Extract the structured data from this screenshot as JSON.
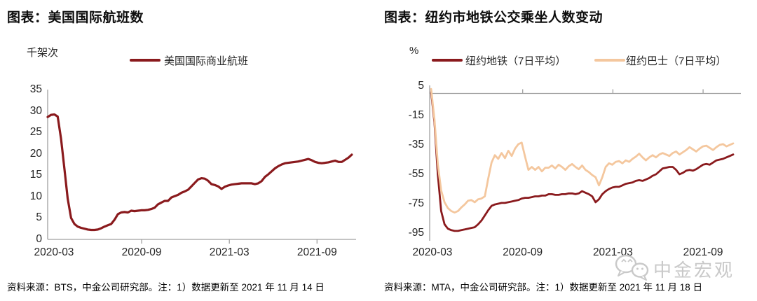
{
  "colors": {
    "line_dark": "#8A1A1D",
    "line_light": "#F4C79E",
    "axis": "#A0A0A0",
    "watermark": "#C9C9C9"
  },
  "watermark": {
    "text": "中金宏观",
    "icon": "wechat-chat-bubbles-icon"
  },
  "charts": [
    {
      "title": "图表：美国国际航班数",
      "unit": "千架次",
      "legend": [
        {
          "label": "美国国际商业航班",
          "color": "#8A1A1D"
        }
      ],
      "source_note": "资料来源：BTS，中金公司研究部。注：1）数据更新至 2021 年 11 月 14 日",
      "chart_data": {
        "type": "line",
        "ylabel_unit": "千架次",
        "ylim": [
          0,
          35
        ],
        "y_ticks": [
          35,
          30,
          25,
          20,
          15,
          10,
          5,
          0
        ],
        "x_tick_labels": [
          "2020-03",
          "2020-09",
          "2021-03",
          "2021-09"
        ],
        "label_months": [
          0,
          6,
          12,
          18
        ],
        "tick_months": [
          6,
          12,
          18
        ],
        "x_start_month": -0.43,
        "x_end_month": 20.38,
        "grid": false,
        "legend_position": "top",
        "series": [
          {
            "name": "美国国际商业航班",
            "color": "#8A1A1D",
            "values": [
              28.6,
              29.1,
              29.2,
              28.7,
              23.5,
              16.5,
              9.5,
              5.0,
              3.6,
              3.0,
              2.7,
              2.5,
              2.3,
              2.2,
              2.2,
              2.3,
              2.6,
              3.0,
              3.3,
              3.6,
              4.6,
              5.9,
              6.3,
              6.4,
              6.3,
              6.7,
              6.6,
              6.7,
              6.8,
              6.8,
              6.9,
              7.1,
              7.4,
              8.2,
              8.6,
              9.0,
              9.0,
              9.8,
              10.1,
              10.4,
              10.9,
              11.2,
              11.6,
              12.4,
              13.2,
              14.0,
              14.3,
              14.2,
              13.7,
              12.9,
              12.7,
              12.4,
              11.8,
              12.3,
              12.6,
              12.8,
              12.9,
              13.0,
              13.1,
              13.1,
              13.1,
              13.1,
              12.9,
              13.1,
              13.6,
              14.6,
              15.2,
              15.9,
              16.6,
              17.1,
              17.5,
              17.8,
              17.9,
              18.0,
              18.1,
              18.2,
              18.4,
              18.6,
              18.8,
              18.5,
              18.1,
              17.9,
              17.8,
              17.9,
              18.0,
              18.2,
              18.4,
              18.1,
              18.1,
              18.6,
              19.1,
              19.8
            ]
          }
        ]
      }
    },
    {
      "title": "图表：纽约市地铁公交乘坐人数变动",
      "unit": "%",
      "legend": [
        {
          "label": "纽约地铁（7日平均）",
          "color": "#8A1A1D"
        },
        {
          "label": "纽约巴士（7日平均）",
          "color": "#F4C79E"
        }
      ],
      "source_note": "资料来源：MTA，中金公司研究部。注：1）数据更新至 2021 年 11 月 18 日",
      "chart_data": {
        "type": "line",
        "ylabel_unit": "%",
        "ylim": [
          -95,
          5
        ],
        "y_ticks": [
          5,
          -15,
          -35,
          -55,
          -75,
          -95
        ],
        "x_tick_labels": [
          "2020-03",
          "2020-09",
          "2021-03",
          "2021-09"
        ],
        "label_months": [
          0,
          6,
          12,
          18
        ],
        "tick_months": [
          6,
          12,
          18
        ],
        "x_start_month": -0.09,
        "x_end_month": 20.0,
        "grid": false,
        "legend_position": "top",
        "series": [
          {
            "name": "纽约地铁（7日平均）",
            "color": "#8A1A1D",
            "values": [
              1,
              -20,
              -55,
              -80,
              -89,
              -92,
              -93,
              -93.5,
              -93.5,
              -93,
              -92.5,
              -92,
              -91.5,
              -91,
              -89,
              -86.5,
              -83,
              -79.5,
              -76.5,
              -75.5,
              -75,
              -74.5,
              -74.5,
              -74,
              -73.5,
              -73,
              -72.5,
              -71.5,
              -71,
              -71,
              -70.5,
              -70,
              -70,
              -69.5,
              -69.5,
              -68.5,
              -68.5,
              -69,
              -69,
              -68.5,
              -68.5,
              -68,
              -68,
              -68.5,
              -68,
              -66.5,
              -67.5,
              -68.5,
              -70,
              -74,
              -72,
              -68.5,
              -66.5,
              -65,
              -64,
              -63.5,
              -63.5,
              -62.5,
              -61.5,
              -61,
              -60.5,
              -59.5,
              -59,
              -59.5,
              -58.5,
              -57.5,
              -56,
              -55,
              -53,
              -51,
              -50.5,
              -50,
              -50,
              -52,
              -55,
              -54,
              -52.5,
              -52,
              -52.5,
              -51.5,
              -50,
              -48.5,
              -48,
              -48.5,
              -47,
              -45.5,
              -45,
              -44.5,
              -43.5,
              -42.5,
              -41.5
            ]
          },
          {
            "name": "纽约巴士（7日平均）",
            "color": "#F4C79E",
            "values": [
              3,
              -18,
              -48,
              -66,
              -74,
              -78,
              -80,
              -81,
              -80,
              -77.5,
              -75.5,
              -73,
              -72.5,
              -74,
              -72,
              -71.5,
              -70,
              -58,
              -47,
              -42,
              -44.5,
              -40.5,
              -44,
              -39,
              -42.5,
              -37.5,
              -34.5,
              -33.5,
              -43,
              -52,
              -50,
              -52,
              -50,
              -53,
              -50.5,
              -50.5,
              -49,
              -51,
              -48.5,
              -50,
              -52,
              -49.5,
              -48,
              -50,
              -51.5,
              -49,
              -52,
              -53.5,
              -55.5,
              -57,
              -62.5,
              -57,
              -50,
              -47.5,
              -48.5,
              -46.5,
              -46,
              -47.5,
              -45.5,
              -46.5,
              -44.5,
              -43,
              -41,
              -43.5,
              -45.5,
              -43.5,
              -42,
              -43.5,
              -41.5,
              -40.5,
              -41.5,
              -42.5,
              -40.5,
              -39.5,
              -41.5,
              -40,
              -38.5,
              -36.5,
              -38,
              -39.5,
              -37.5,
              -36,
              -35.5,
              -37,
              -38.5,
              -36.5,
              -35,
              -34.5,
              -36,
              -35,
              -34
            ]
          }
        ]
      }
    }
  ]
}
